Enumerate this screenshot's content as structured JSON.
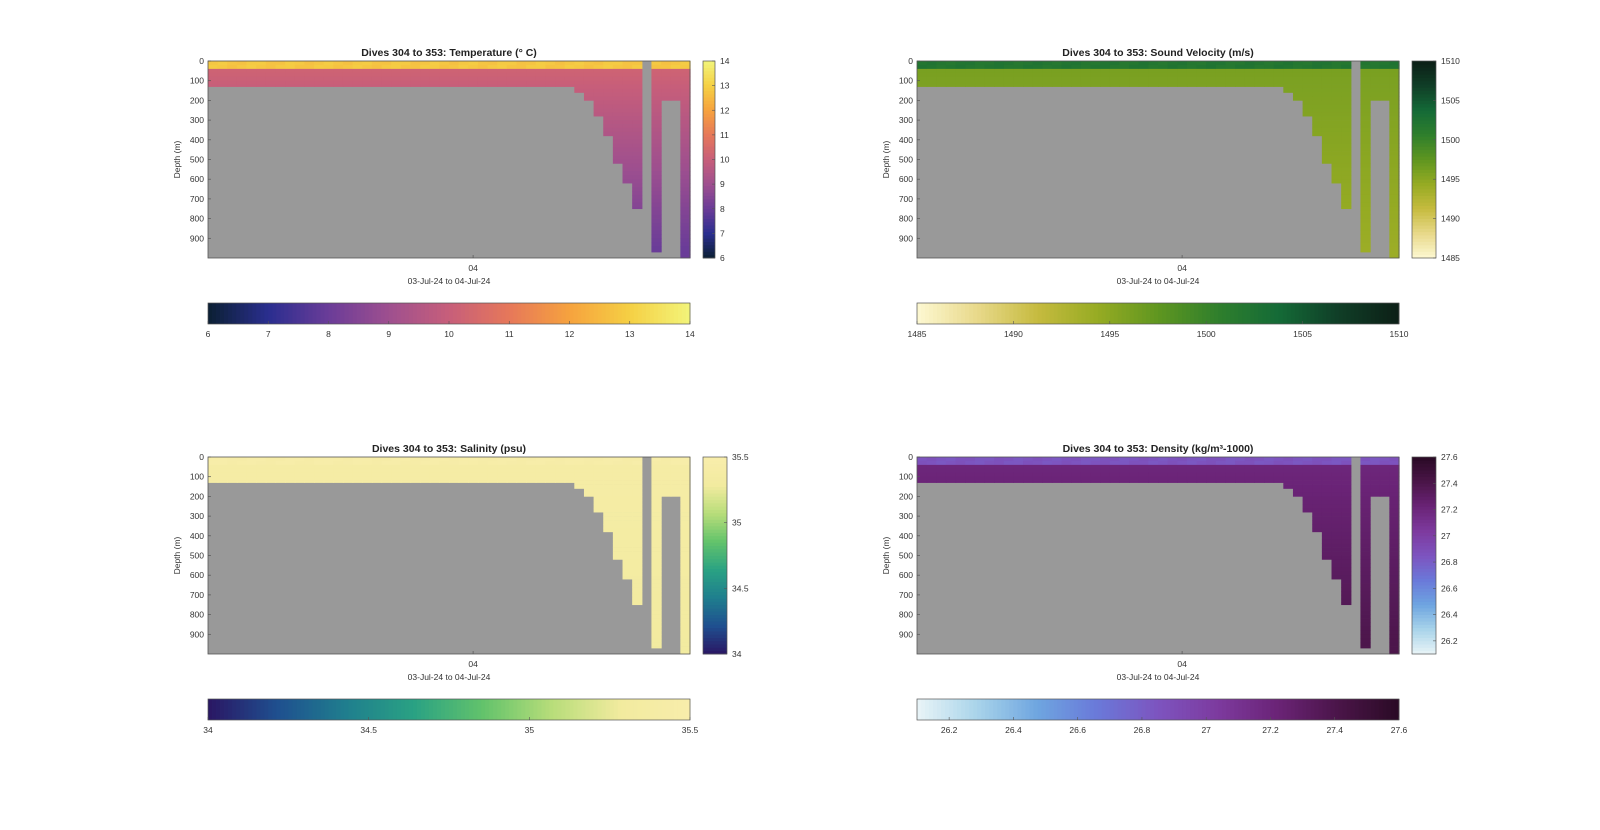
{
  "figure": {
    "background": "#ffffff",
    "land_color": "#999999"
  },
  "chart_data": [
    {
      "id": "temperature",
      "type": "heatmap",
      "title": "Dives 304 to 353: Temperature (° C)",
      "ylabel": "Depth (m)",
      "xlabel": "03-Jul-24 to 04-Jul-24",
      "xticks": [
        "04"
      ],
      "ylim": [
        0,
        1000
      ],
      "yticks": [
        0,
        100,
        200,
        300,
        400,
        500,
        600,
        700,
        800,
        900
      ],
      "clim": [
        6,
        14
      ],
      "colorbar_ticks": [
        6,
        7,
        8,
        9,
        10,
        11,
        12,
        13,
        14
      ],
      "colorbar_ticks_vertical": [
        6,
        7,
        8,
        9,
        10,
        11,
        12,
        13,
        14
      ],
      "colormap": [
        "#0b1f33",
        "#2a2e8f",
        "#6a3c98",
        "#9e4f8f",
        "#c75e7a",
        "#e6785a",
        "#f6a23e",
        "#f5d044",
        "#f2f47a"
      ],
      "surface_value": 12.8,
      "mixed_layer_depth": 40,
      "deep_value": 10.2,
      "bottom_value": 8,
      "columns": 50,
      "max_depth_per_dive": [
        130,
        130,
        130,
        130,
        130,
        130,
        130,
        130,
        130,
        130,
        130,
        130,
        130,
        130,
        130,
        130,
        130,
        130,
        130,
        130,
        130,
        130,
        130,
        130,
        130,
        130,
        130,
        130,
        130,
        130,
        130,
        130,
        130,
        130,
        130,
        130,
        130,
        130,
        160,
        200,
        280,
        380,
        520,
        620,
        750,
        0,
        970,
        200,
        200,
        1000
      ]
    },
    {
      "id": "sound_velocity",
      "type": "heatmap",
      "title": "Dives 304 to 353: Sound Velocity (m/s)",
      "ylabel": "Depth (m)",
      "xlabel": "03-Jul-24 to 04-Jul-24",
      "xticks": [
        "04"
      ],
      "ylim": [
        0,
        1000
      ],
      "yticks": [
        0,
        100,
        200,
        300,
        400,
        500,
        600,
        700,
        800,
        900
      ],
      "clim": [
        1485,
        1510
      ],
      "colorbar_ticks": [
        1485,
        1490,
        1495,
        1500,
        1505,
        1510
      ],
      "colorbar_ticks_vertical": [
        1485,
        1490,
        1495,
        1500,
        1505,
        1510
      ],
      "colormap": [
        "#fdf8d2",
        "#e8d98a",
        "#c6bb3f",
        "#96ab23",
        "#5f9620",
        "#2f7f2c",
        "#146a37",
        "#103e27",
        "#0c1f16"
      ],
      "surface_value": 1502,
      "mixed_layer_depth": 40,
      "deep_value": 1496,
      "bottom_value": 1494,
      "columns": 50,
      "max_depth_per_dive": [
        130,
        130,
        130,
        130,
        130,
        130,
        130,
        130,
        130,
        130,
        130,
        130,
        130,
        130,
        130,
        130,
        130,
        130,
        130,
        130,
        130,
        130,
        130,
        130,
        130,
        130,
        130,
        130,
        130,
        130,
        130,
        130,
        130,
        130,
        130,
        130,
        130,
        130,
        160,
        200,
        280,
        380,
        520,
        620,
        750,
        0,
        970,
        200,
        200,
        1000
      ]
    },
    {
      "id": "salinity",
      "type": "heatmap",
      "title": "Dives 304 to 353: Salinity (psu)",
      "ylabel": "Depth (m)",
      "xlabel": "03-Jul-24 to 04-Jul-24",
      "xticks": [
        "04"
      ],
      "ylim": [
        0,
        1000
      ],
      "yticks": [
        0,
        100,
        200,
        300,
        400,
        500,
        600,
        700,
        800,
        900
      ],
      "clim": [
        34,
        35.5
      ],
      "colorbar_ticks": [
        34,
        34.5,
        35,
        35.5
      ],
      "colorbar_ticks_vertical": [
        34,
        34.5,
        35,
        35.5
      ],
      "colormap": [
        "#2a1663",
        "#1f4f8f",
        "#1f7e8e",
        "#2aa283",
        "#63c36b",
        "#b8dd7a",
        "#f2eb9f",
        "#f8edab"
      ],
      "surface_value": 35.45,
      "mixed_layer_depth": 40,
      "deep_value": 35.4,
      "bottom_value": 35.3,
      "columns": 50,
      "max_depth_per_dive": [
        130,
        130,
        130,
        130,
        130,
        130,
        130,
        130,
        130,
        130,
        130,
        130,
        130,
        130,
        130,
        130,
        130,
        130,
        130,
        130,
        130,
        130,
        130,
        130,
        130,
        130,
        130,
        130,
        130,
        130,
        130,
        130,
        130,
        130,
        130,
        130,
        130,
        130,
        160,
        200,
        280,
        380,
        520,
        620,
        750,
        0,
        970,
        200,
        200,
        1000
      ]
    },
    {
      "id": "density",
      "type": "heatmap",
      "title": "Dives 304 to 353: Density (kg/m³-1000)",
      "ylabel": "Depth (m)",
      "xlabel": "03-Jul-24 to 04-Jul-24",
      "xticks": [
        "04"
      ],
      "ylim": [
        0,
        1000
      ],
      "yticks": [
        0,
        100,
        200,
        300,
        400,
        500,
        600,
        700,
        800,
        900
      ],
      "clim": [
        26.1,
        27.6
      ],
      "colorbar_ticks": [
        26.2,
        26.4,
        26.6,
        26.8,
        27,
        27.2,
        27.4,
        27.6
      ],
      "colorbar_ticks_vertical": [
        26.2,
        26.4,
        26.6,
        26.8,
        27,
        27.2,
        27.4,
        27.6
      ],
      "colormap": [
        "#e9f4f7",
        "#a9d4ea",
        "#6ea5e0",
        "#6a79d9",
        "#7d54bf",
        "#7d3a9e",
        "#6a2376",
        "#4a1548",
        "#2a0a25"
      ],
      "surface_value": 26.85,
      "mixed_layer_depth": 40,
      "deep_value": 27.2,
      "bottom_value": 27.4,
      "columns": 50,
      "max_depth_per_dive": [
        130,
        130,
        130,
        130,
        130,
        130,
        130,
        130,
        130,
        130,
        130,
        130,
        130,
        130,
        130,
        130,
        130,
        130,
        130,
        130,
        130,
        130,
        130,
        130,
        130,
        130,
        130,
        130,
        130,
        130,
        130,
        130,
        130,
        130,
        130,
        130,
        130,
        130,
        160,
        200,
        280,
        380,
        520,
        620,
        750,
        0,
        970,
        200,
        200,
        1000
      ]
    }
  ]
}
